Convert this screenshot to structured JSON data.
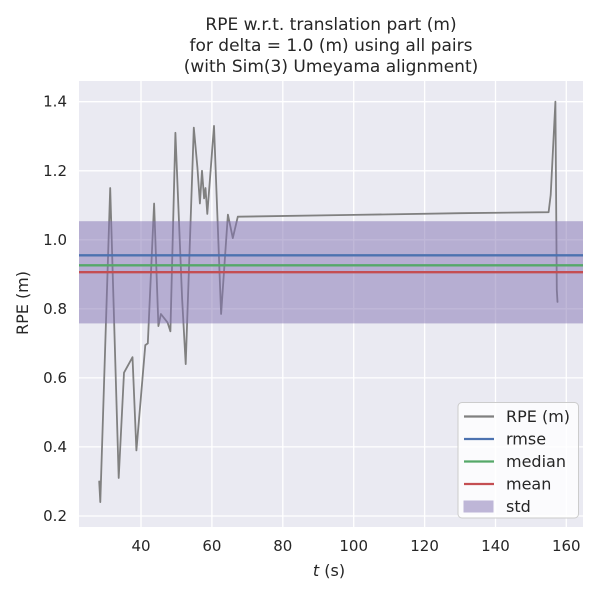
{
  "title": {
    "line1": "RPE w.r.t. translation part (m)",
    "line2": "for delta = 1.0 (m) using all pairs",
    "line3": "(with Sim(3) Umeyama alignment)"
  },
  "axes": {
    "xlabel": "t (s)",
    "xlabel_var": "t",
    "xlabel_unit": " (s)",
    "ylabel": "RPE (m)",
    "x_ticks": [
      {
        "v": 40,
        "label": "40"
      },
      {
        "v": 60,
        "label": "60"
      },
      {
        "v": 80,
        "label": "80"
      },
      {
        "v": 100,
        "label": "100"
      },
      {
        "v": 120,
        "label": "120"
      },
      {
        "v": 140,
        "label": "140"
      },
      {
        "v": 160,
        "label": "160"
      }
    ],
    "y_ticks": [
      {
        "v": 0.2,
        "label": "0.2"
      },
      {
        "v": 0.4,
        "label": "0.4"
      },
      {
        "v": 0.6,
        "label": "0.6"
      },
      {
        "v": 0.8,
        "label": "0.8"
      },
      {
        "v": 1.0,
        "label": "1.0"
      },
      {
        "v": 1.2,
        "label": "1.2"
      },
      {
        "v": 1.4,
        "label": "1.4"
      }
    ]
  },
  "legend": {
    "items": [
      {
        "label": "RPE (m)",
        "type": "line",
        "color": "#808080"
      },
      {
        "label": "rmse",
        "type": "line",
        "color": "#4C72B0"
      },
      {
        "label": "median",
        "type": "line",
        "color": "#55A868"
      },
      {
        "label": "mean",
        "type": "line",
        "color": "#C44E52"
      },
      {
        "label": "std",
        "type": "patch",
        "color": "#8172B2"
      }
    ]
  },
  "chart_data": {
    "type": "line",
    "title": "RPE w.r.t. translation part (m) for delta = 1.0 (m) using all pairs (with Sim(3) Umeyama alignment)",
    "xlabel": "t (s)",
    "ylabel": "RPE (m)",
    "xlim": [
      22.5,
      164.7
    ],
    "ylim": [
      0.168,
      1.46
    ],
    "grid": true,
    "legend_position": "lower right",
    "stats": {
      "rmse": 0.955,
      "median": 0.926,
      "mean": 0.906,
      "std": 0.148
    },
    "series": [
      {
        "name": "RPE (m)",
        "type": "line",
        "color": "#808080",
        "points": [
          [
            28.2,
            0.3
          ],
          [
            28.5,
            0.24
          ],
          [
            31.3,
            1.15
          ],
          [
            33.7,
            0.31
          ],
          [
            35.2,
            0.615
          ],
          [
            37.6,
            0.66
          ],
          [
            38.7,
            0.39
          ],
          [
            41.2,
            0.695
          ],
          [
            41.9,
            0.7
          ],
          [
            43.7,
            1.105
          ],
          [
            44.9,
            0.75
          ],
          [
            45.6,
            0.785
          ],
          [
            47.5,
            0.76
          ],
          [
            48.3,
            0.735
          ],
          [
            49.7,
            1.31
          ],
          [
            51.6,
            0.83
          ],
          [
            52.6,
            0.64
          ],
          [
            54.9,
            1.325
          ],
          [
            55.9,
            1.21
          ],
          [
            56.6,
            1.105
          ],
          [
            57.2,
            1.2
          ],
          [
            57.8,
            1.12
          ],
          [
            58.2,
            1.15
          ],
          [
            58.7,
            1.075
          ],
          [
            60.6,
            1.33
          ],
          [
            62.6,
            0.785
          ],
          [
            64.5,
            1.073
          ],
          [
            65.9,
            1.005
          ],
          [
            67.3,
            1.067
          ],
          [
            100.0,
            1.072
          ],
          [
            130.0,
            1.077
          ],
          [
            155.0,
            1.08
          ],
          [
            155.6,
            1.13
          ],
          [
            156.9,
            1.4
          ],
          [
            157.3,
            0.855
          ],
          [
            157.5,
            0.82
          ]
        ]
      },
      {
        "name": "rmse",
        "type": "hline",
        "color": "#4C72B0",
        "value": 0.955
      },
      {
        "name": "median",
        "type": "hline",
        "color": "#55A868",
        "value": 0.926
      },
      {
        "name": "mean",
        "type": "hline",
        "color": "#C44E52",
        "value": 0.906
      },
      {
        "name": "std",
        "type": "band",
        "color": "#8172B2",
        "alpha": 0.5,
        "range": [
          0.758,
          1.054
        ]
      }
    ]
  },
  "style": {
    "fig_bg": "#FFFFFF",
    "axes_bg": "#EAEAF2",
    "grid_color": "#FFFFFF",
    "text_color": "#262626",
    "legend_bg": "#FFFFFF",
    "legend_border": "#CCCCCC"
  }
}
